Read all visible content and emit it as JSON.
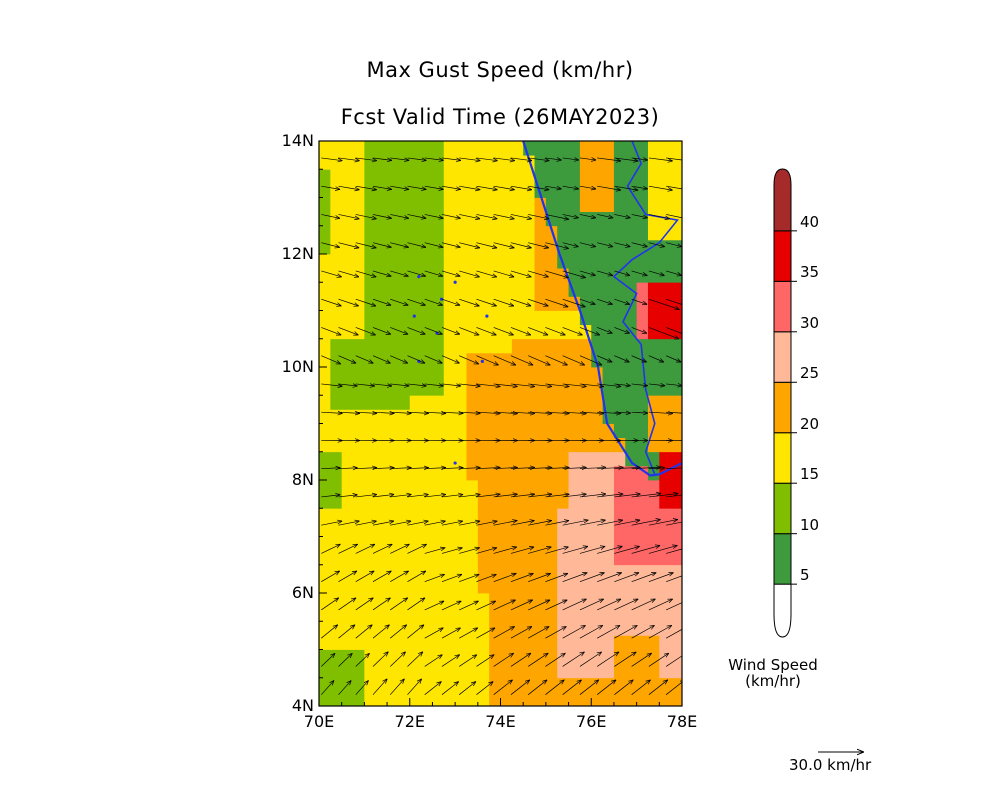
{
  "title": {
    "line1": "Max Gust Speed (km/hr)",
    "line2": "Fcst Valid Time (26MAY2023)"
  },
  "map": {
    "lon_range": [
      70,
      78
    ],
    "lat_range": [
      4,
      14
    ],
    "x_ticks": [
      "70E",
      "72E",
      "74E",
      "76E",
      "78E"
    ],
    "y_ticks": [
      "4N",
      "6N",
      "8N",
      "10N",
      "12N",
      "14N"
    ],
    "coastline_color": "#2233ee"
  },
  "colorbar": {
    "title_line1": "Wind Speed",
    "title_line2": "(km/hr)",
    "bins": [
      {
        "min": 0,
        "max": 5,
        "color": "#ffffff"
      },
      {
        "min": 5,
        "max": 10,
        "color": "#3d9a3d"
      },
      {
        "min": 10,
        "max": 15,
        "color": "#7fbf00"
      },
      {
        "min": 15,
        "max": 20,
        "color": "#ffe600"
      },
      {
        "min": 20,
        "max": 25,
        "color": "#ffa500"
      },
      {
        "min": 25,
        "max": 30,
        "color": "#ffb999"
      },
      {
        "min": 30,
        "max": 35,
        "color": "#ff6666"
      },
      {
        "min": 35,
        "max": 40,
        "color": "#e60000"
      },
      {
        "min": 40,
        "max": 45,
        "color": "#a52a2a"
      }
    ],
    "labels": [
      "5",
      "10",
      "15",
      "20",
      "25",
      "30",
      "35",
      "40"
    ]
  },
  "reference_vector": {
    "label": "30.0 km/hr"
  }
}
